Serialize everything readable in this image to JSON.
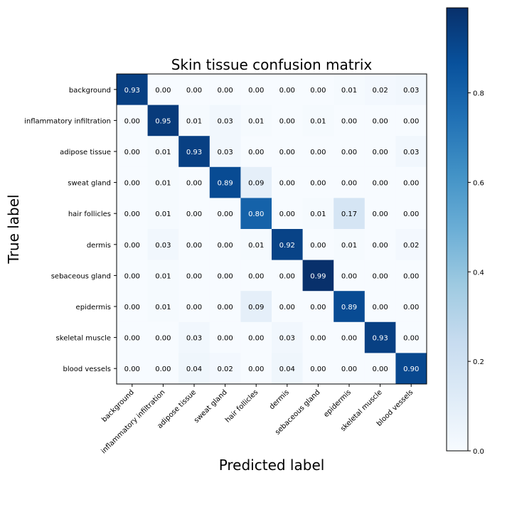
{
  "chart_data": {
    "type": "heatmap",
    "title": "Skin tissue confusion matrix",
    "xlabel": "Predicted label",
    "ylabel": "True label",
    "labels": [
      "background",
      "inflammatory infiltration",
      "adipose tissue",
      "sweat gland",
      "hair follicles",
      "dermis",
      "sebaceous gland",
      "epidermis",
      "skeletal muscle",
      "blood vessels"
    ],
    "matrix": [
      [
        0.93,
        0.0,
        0.0,
        0.0,
        0.0,
        0.0,
        0.0,
        0.01,
        0.02,
        0.03
      ],
      [
        0.0,
        0.95,
        0.01,
        0.03,
        0.01,
        0.0,
        0.01,
        0.0,
        0.0,
        0.0
      ],
      [
        0.0,
        0.01,
        0.93,
        0.03,
        0.0,
        0.0,
        0.0,
        0.0,
        0.0,
        0.03
      ],
      [
        0.0,
        0.01,
        0.0,
        0.89,
        0.09,
        0.0,
        0.0,
        0.0,
        0.0,
        0.0
      ],
      [
        0.0,
        0.01,
        0.0,
        0.0,
        0.8,
        0.0,
        0.01,
        0.17,
        0.0,
        0.0
      ],
      [
        0.0,
        0.03,
        0.0,
        0.0,
        0.01,
        0.92,
        0.0,
        0.01,
        0.0,
        0.02
      ],
      [
        0.0,
        0.01,
        0.0,
        0.0,
        0.0,
        0.0,
        0.99,
        0.0,
        0.0,
        0.0
      ],
      [
        0.0,
        0.01,
        0.0,
        0.0,
        0.09,
        0.0,
        0.0,
        0.89,
        0.0,
        0.0
      ],
      [
        0.0,
        0.0,
        0.03,
        0.0,
        0.0,
        0.03,
        0.0,
        0.0,
        0.93,
        0.0
      ],
      [
        0.0,
        0.0,
        0.04,
        0.02,
        0.0,
        0.04,
        0.0,
        0.0,
        0.0,
        0.9
      ]
    ],
    "value_range": [
      0.0,
      0.99
    ],
    "colormap": "Blues",
    "colorbar_ticks": [
      0.0,
      0.2,
      0.4,
      0.6,
      0.8
    ],
    "colorbar_tick_labels": [
      "0.0",
      "0.2",
      "0.4",
      "0.6",
      "0.8"
    ],
    "grid": false,
    "legend": "colorbar-right"
  }
}
